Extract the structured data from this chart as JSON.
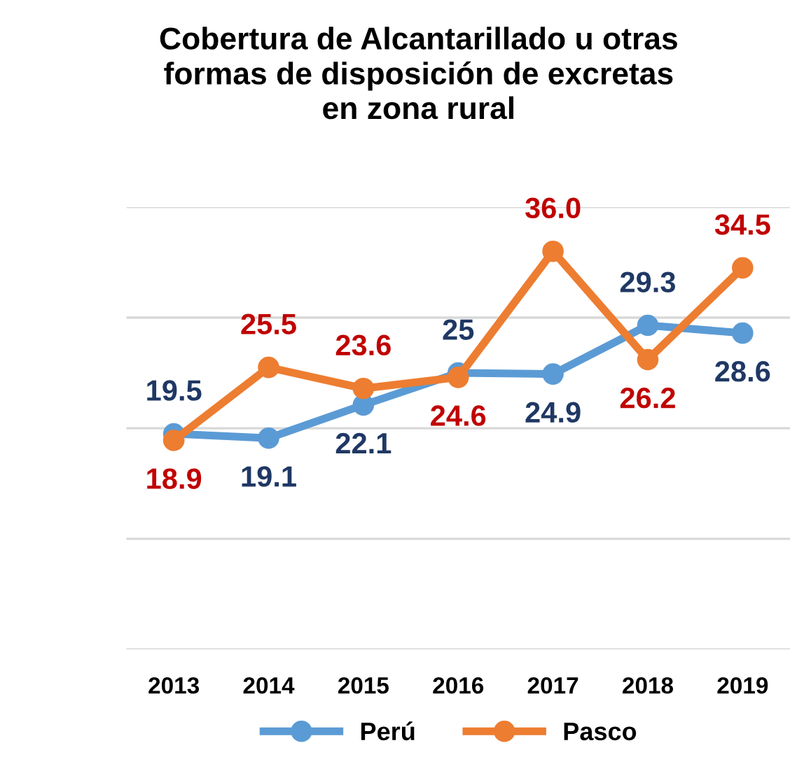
{
  "chart_data": {
    "type": "line",
    "title": "Cobertura de Alcantarillado u otras\nformas de disposición de excretas\nen zona rural",
    "categories": [
      "2013",
      "2014",
      "2015",
      "2016",
      "2017",
      "2018",
      "2019"
    ],
    "series": [
      {
        "name": "Perú",
        "color": "#5b9bd5",
        "values": [
          19.5,
          19.1,
          22.1,
          25,
          24.9,
          29.3,
          28.6
        ],
        "value_labels": [
          "19.5",
          "19.1",
          "22.1",
          "25",
          "24.9",
          "29.3",
          "28.6"
        ]
      },
      {
        "name": "Pasco",
        "color": "#ed7d31",
        "values": [
          18.9,
          25.5,
          23.6,
          24.6,
          36.0,
          26.2,
          34.5
        ],
        "value_labels": [
          "18.9",
          "25.5",
          "23.6",
          "24.6",
          "36.0",
          "26.2",
          "34.5"
        ]
      }
    ],
    "ylim": [
      0,
      40
    ],
    "yticks": [
      {
        "value": 0,
        "label": null
      },
      {
        "value": 10,
        "label": null
      },
      {
        "value": 20,
        "label": null
      },
      {
        "value": 30,
        "label": null
      },
      {
        "value": 40,
        "label": null
      }
    ],
    "tick_labels": "x",
    "grid": "y",
    "legend": "bottom",
    "marker": "circle",
    "line_style": "solid"
  }
}
